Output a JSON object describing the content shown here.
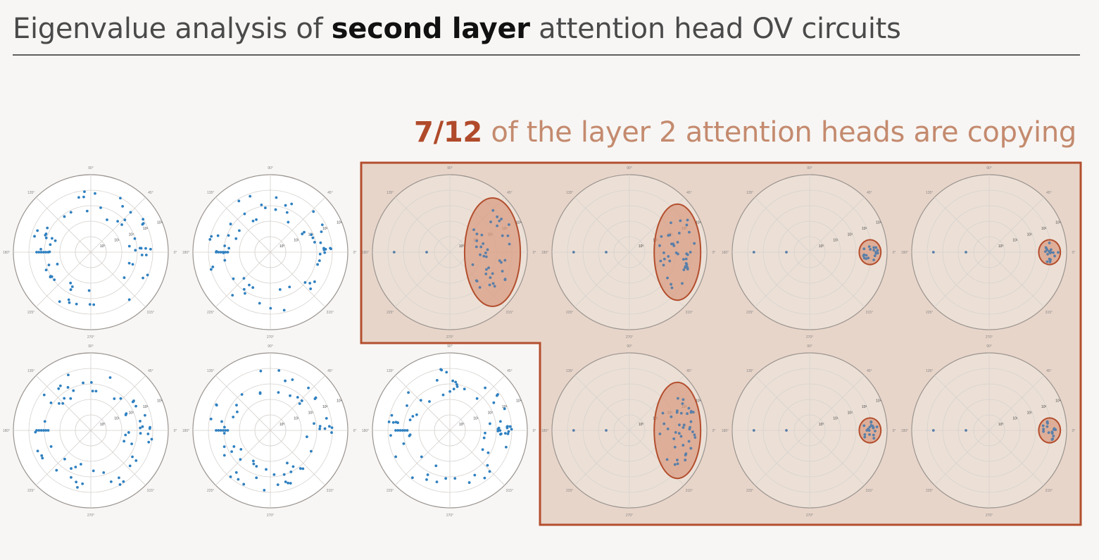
{
  "title": {
    "prefix": "Eigenvalue analysis of ",
    "bold": "second layer",
    "suffix": " attention head OV circuits"
  },
  "headline": {
    "bold": "7/12",
    "rest": " of the layer 2 attention heads are copying"
  },
  "colors": {
    "title_text": "#4a4a4a",
    "title_bold": "#111111",
    "headline_bold": "#b04a2b",
    "headline_text": "#c48a6e",
    "highlight_fill": "#e8d5c9",
    "highlight_border": "#b34e2e",
    "point": "#2f80c0",
    "point_copying": "#5a7fa8",
    "ellipse_fill": "#d9987e",
    "ellipse_border": "#b34e2e",
    "grid": "#d6d2ce",
    "outer_ring": "#9a9490"
  },
  "chart_data": {
    "type": "scatter",
    "coordinate_system": "polar",
    "grid_rows": 2,
    "grid_cols": 6,
    "angle_ticks": [
      "0°",
      "45°",
      "90°",
      "135°",
      "180°",
      "225°",
      "270°",
      "315°"
    ],
    "radial_ticks": [
      "10⁰",
      "10¹",
      "10²",
      "10³",
      "10⁴"
    ],
    "heads": [
      {
        "row": 0,
        "col": 0,
        "copying": false,
        "pattern": "ring"
      },
      {
        "row": 0,
        "col": 1,
        "copying": false,
        "pattern": "ring"
      },
      {
        "row": 0,
        "col": 2,
        "copying": true,
        "pattern": "wide-cluster"
      },
      {
        "row": 0,
        "col": 3,
        "copying": true,
        "pattern": "medium-cluster"
      },
      {
        "row": 0,
        "col": 4,
        "copying": true,
        "pattern": "tight-cluster"
      },
      {
        "row": 0,
        "col": 5,
        "copying": true,
        "pattern": "tight-cluster"
      },
      {
        "row": 1,
        "col": 0,
        "copying": false,
        "pattern": "ring"
      },
      {
        "row": 1,
        "col": 1,
        "copying": false,
        "pattern": "ring"
      },
      {
        "row": 1,
        "col": 2,
        "copying": false,
        "pattern": "ring-right"
      },
      {
        "row": 1,
        "col": 3,
        "copying": true,
        "pattern": "medium-cluster"
      },
      {
        "row": 1,
        "col": 4,
        "copying": true,
        "pattern": "tight-cluster"
      },
      {
        "row": 1,
        "col": 5,
        "copying": true,
        "pattern": "tight-cluster"
      }
    ]
  }
}
